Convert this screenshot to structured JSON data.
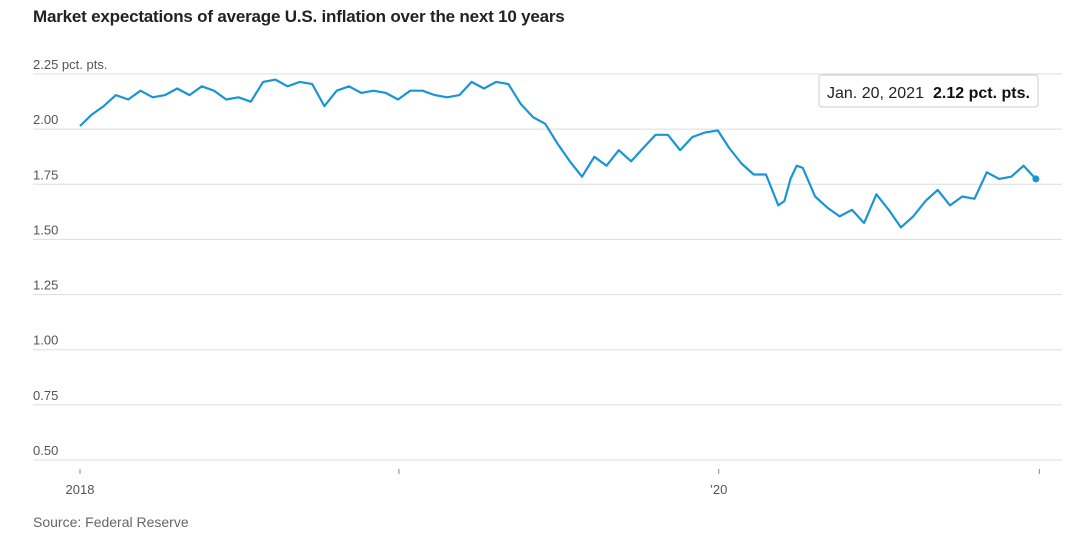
{
  "title": "Market expectations of average U.S. inflation over the next 10 years",
  "source": "Source: Federal Reserve",
  "tooltip": {
    "date": "Jan. 20, 2021",
    "value": "2.12 pct. pts."
  },
  "colors": {
    "line": "#1a95d3",
    "grid": "#dddddd",
    "axis": "#bbbbbb"
  },
  "chart_data": {
    "type": "line",
    "title": "Market expectations of average U.S. inflation over the next 10 years",
    "xlabel": "",
    "ylabel": "pct. pts.",
    "ylim": [
      0.5,
      2.25
    ],
    "yticks": [
      2.25,
      2.0,
      1.75,
      1.5,
      1.25,
      1.0,
      0.75,
      0.5
    ],
    "ytick_labels": [
      "2.25 pct. pts.",
      "2.00",
      "1.75",
      "1.50",
      "1.25",
      "1.00",
      "0.75",
      "0.50"
    ],
    "xlim": [
      "2018-01-02",
      "2021-01-20"
    ],
    "xticks": [
      {
        "date": "2018-01-01",
        "label": "2018"
      },
      {
        "date": "2019-01-01",
        "label": ""
      },
      {
        "date": "2020-01-01",
        "label": "’20"
      },
      {
        "date": "2021-01-01",
        "label": ""
      }
    ],
    "grid": true,
    "series": [
      {
        "name": "",
        "points": [
          [
            "2018-01-02",
            1.96
          ],
          [
            "2018-01-15",
            2.01
          ],
          [
            "2018-01-29",
            2.05
          ],
          [
            "2018-02-12",
            2.1
          ],
          [
            "2018-02-26",
            2.08
          ],
          [
            "2018-03-12",
            2.12
          ],
          [
            "2018-03-26",
            2.09
          ],
          [
            "2018-04-09",
            2.1
          ],
          [
            "2018-04-23",
            2.13
          ],
          [
            "2018-05-07",
            2.1
          ],
          [
            "2018-05-21",
            2.14
          ],
          [
            "2018-06-04",
            2.12
          ],
          [
            "2018-06-18",
            2.08
          ],
          [
            "2018-07-02",
            2.09
          ],
          [
            "2018-07-16",
            2.07
          ],
          [
            "2018-07-30",
            2.16
          ],
          [
            "2018-08-13",
            2.17
          ],
          [
            "2018-08-27",
            2.14
          ],
          [
            "2018-09-10",
            2.16
          ],
          [
            "2018-09-24",
            2.15
          ],
          [
            "2018-10-08",
            2.05
          ],
          [
            "2018-10-22",
            2.12
          ],
          [
            "2018-11-05",
            2.14
          ],
          [
            "2018-11-19",
            2.11
          ],
          [
            "2018-12-03",
            2.12
          ],
          [
            "2018-12-17",
            2.11
          ],
          [
            "2018-12-31",
            2.08
          ],
          [
            "2019-01-14",
            2.12
          ],
          [
            "2019-01-28",
            2.12
          ],
          [
            "2019-02-11",
            2.1
          ],
          [
            "2019-02-25",
            2.09
          ],
          [
            "2019-03-11",
            2.1
          ],
          [
            "2019-03-25",
            2.16
          ],
          [
            "2019-04-08",
            2.13
          ],
          [
            "2019-04-22",
            2.16
          ],
          [
            "2019-05-06",
            2.15
          ],
          [
            "2019-05-20",
            2.06
          ],
          [
            "2019-06-03",
            2.0
          ],
          [
            "2019-06-17",
            1.97
          ],
          [
            "2019-07-01",
            1.88
          ],
          [
            "2019-07-15",
            1.8
          ],
          [
            "2019-07-29",
            1.73
          ],
          [
            "2019-08-12",
            1.82
          ],
          [
            "2019-08-26",
            1.78
          ],
          [
            "2019-09-09",
            1.85
          ],
          [
            "2019-09-23",
            1.8
          ],
          [
            "2019-10-07",
            1.86
          ],
          [
            "2019-10-21",
            1.92
          ],
          [
            "2019-11-04",
            1.92
          ],
          [
            "2019-11-18",
            1.85
          ],
          [
            "2019-12-02",
            1.91
          ],
          [
            "2019-12-16",
            1.93
          ],
          [
            "2019-12-31",
            1.94
          ],
          [
            "2020-01-13",
            1.86
          ],
          [
            "2020-01-27",
            1.79
          ],
          [
            "2020-02-10",
            1.74
          ],
          [
            "2020-02-24",
            1.74
          ],
          [
            "2020-03-09",
            1.6
          ],
          [
            "2020-03-16",
            1.62
          ],
          [
            "2020-03-23",
            1.72
          ],
          [
            "2020-03-30",
            1.78
          ],
          [
            "2020-04-06",
            1.77
          ],
          [
            "2020-04-20",
            1.64
          ],
          [
            "2020-05-04",
            1.59
          ],
          [
            "2020-05-18",
            1.55
          ],
          [
            "2020-06-01",
            1.58
          ],
          [
            "2020-06-15",
            1.52
          ],
          [
            "2020-06-29",
            1.65
          ],
          [
            "2020-07-13",
            1.58
          ],
          [
            "2020-07-27",
            1.5
          ],
          [
            "2020-08-10",
            1.55
          ],
          [
            "2020-08-24",
            1.62
          ],
          [
            "2020-09-07",
            1.67
          ],
          [
            "2020-09-21",
            1.6
          ],
          [
            "2020-10-05",
            1.64
          ],
          [
            "2020-10-19",
            1.63
          ],
          [
            "2020-11-02",
            1.75
          ],
          [
            "2020-11-16",
            1.72
          ],
          [
            "2020-11-30",
            1.73
          ],
          [
            "2020-12-14",
            1.78
          ],
          [
            "2020-12-28",
            1.72
          ]
        ]
      }
    ]
  }
}
